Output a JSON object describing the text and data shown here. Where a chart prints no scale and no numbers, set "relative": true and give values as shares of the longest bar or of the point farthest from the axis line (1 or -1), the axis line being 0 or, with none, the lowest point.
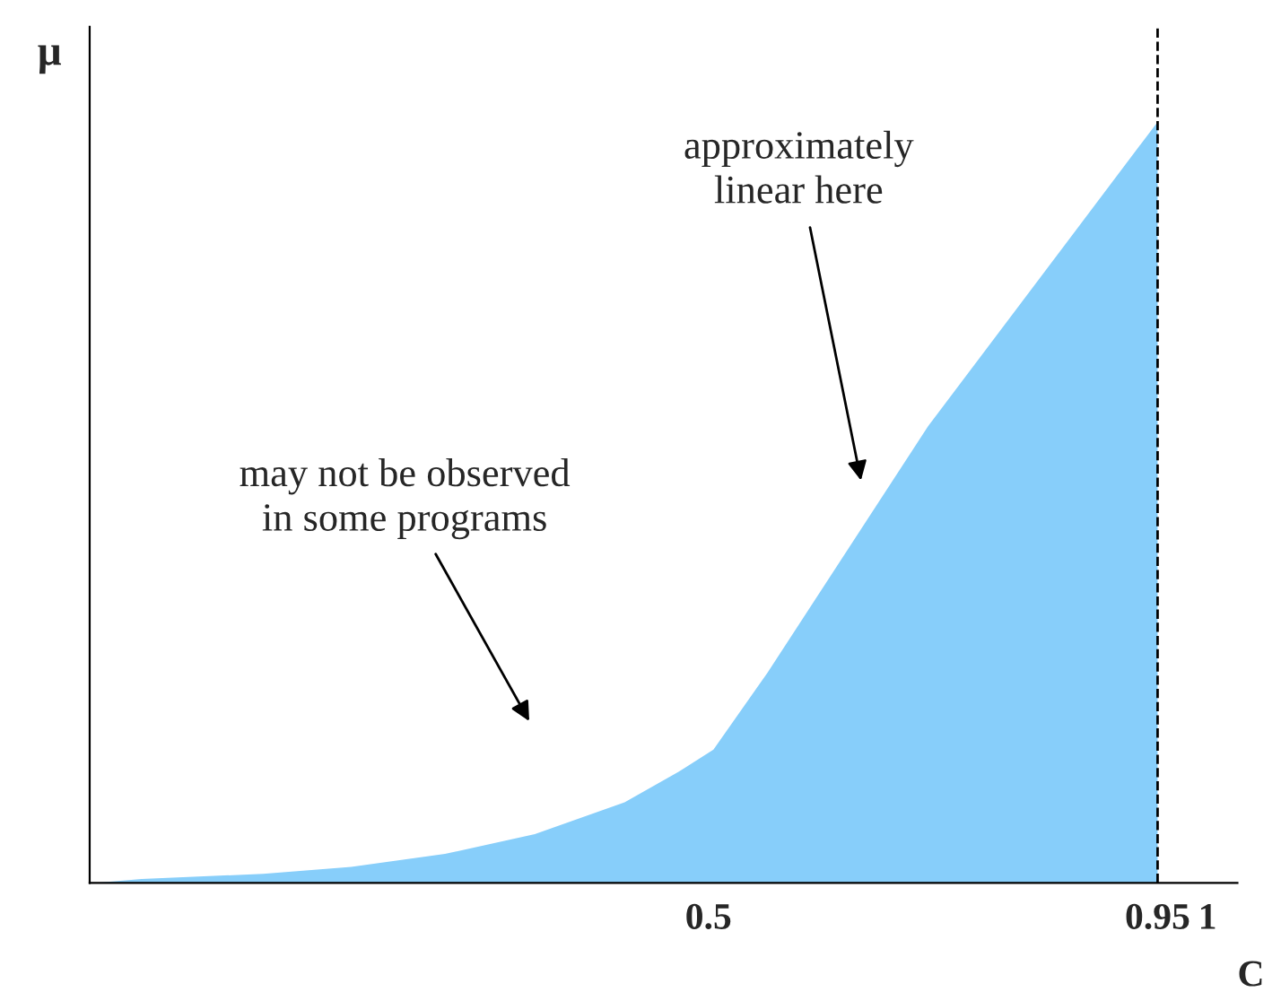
{
  "chart_data": {
    "type": "area",
    "relative": true,
    "xlabel": "C",
    "ylabel": "μ",
    "x": [
      -0.113,
      -0.068,
      0.054,
      0.142,
      0.236,
      0.326,
      0.416,
      0.47,
      0.505,
      0.559,
      0.72,
      0.95
    ],
    "series": [
      {
        "color": "#87cefa",
        "values": [
          0,
          0.005,
          0.012,
          0.021,
          0.038,
          0.064,
          0.106,
          0.146,
          0.175,
          0.276,
          0.6,
          1.0
        ]
      }
    ],
    "xlim": [
      -0.12,
      1.03
    ],
    "xticks": [
      0.5,
      0.95,
      1
    ],
    "ref_lines": [
      {
        "axis": "x",
        "value": 0.95,
        "line_style": "dashed",
        "color": "#000000"
      }
    ],
    "annotations": [
      "approximately\nlinear here",
      "may not be observed\nin some programs"
    ],
    "grid": false,
    "legend": false
  }
}
